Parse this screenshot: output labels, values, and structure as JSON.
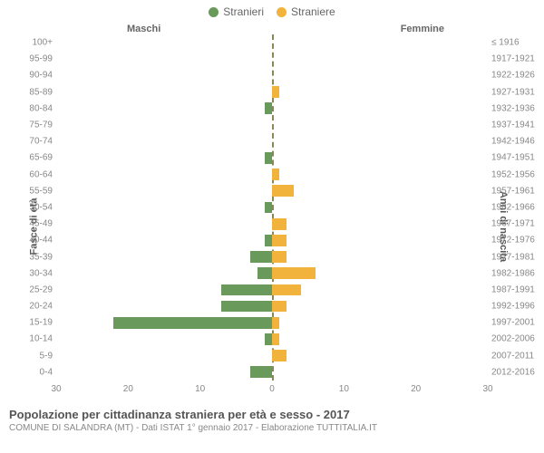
{
  "legend": {
    "male": {
      "label": "Stranieri",
      "color": "#6a9a5b"
    },
    "female": {
      "label": "Straniere",
      "color": "#f1b33c"
    }
  },
  "side_titles": {
    "male": "Maschi",
    "female": "Femmine"
  },
  "axis_titles": {
    "left": "Fasce di età",
    "right": "Anni di nascita"
  },
  "chart": {
    "type": "population-pyramid",
    "x_max": 30,
    "x_ticks": [
      30,
      20,
      10,
      0,
      10,
      20,
      30
    ],
    "background_color": "#ffffff",
    "centerline_color": "#888855",
    "tick_color": "#888888",
    "bar_height_pct": 70,
    "font_family": "Arial",
    "label_fontsize": 10,
    "legend_fontsize": 12,
    "title_fontsize": 13,
    "rows": [
      {
        "age": "100+",
        "years": "≤ 1916",
        "male": 0,
        "female": 0
      },
      {
        "age": "95-99",
        "years": "1917-1921",
        "male": 0,
        "female": 0
      },
      {
        "age": "90-94",
        "years": "1922-1926",
        "male": 0,
        "female": 0
      },
      {
        "age": "85-89",
        "years": "1927-1931",
        "male": 0,
        "female": 1
      },
      {
        "age": "80-84",
        "years": "1932-1936",
        "male": 1,
        "female": 0
      },
      {
        "age": "75-79",
        "years": "1937-1941",
        "male": 0,
        "female": 0
      },
      {
        "age": "70-74",
        "years": "1942-1946",
        "male": 0,
        "female": 0
      },
      {
        "age": "65-69",
        "years": "1947-1951",
        "male": 1,
        "female": 0
      },
      {
        "age": "60-64",
        "years": "1952-1956",
        "male": 0,
        "female": 1
      },
      {
        "age": "55-59",
        "years": "1957-1961",
        "male": 0,
        "female": 3
      },
      {
        "age": "50-54",
        "years": "1962-1966",
        "male": 1,
        "female": 0
      },
      {
        "age": "45-49",
        "years": "1967-1971",
        "male": 0,
        "female": 2
      },
      {
        "age": "40-44",
        "years": "1972-1976",
        "male": 1,
        "female": 2
      },
      {
        "age": "35-39",
        "years": "1977-1981",
        "male": 3,
        "female": 2
      },
      {
        "age": "30-34",
        "years": "1982-1986",
        "male": 2,
        "female": 6
      },
      {
        "age": "25-29",
        "years": "1987-1991",
        "male": 7,
        "female": 4
      },
      {
        "age": "20-24",
        "years": "1992-1996",
        "male": 7,
        "female": 2
      },
      {
        "age": "15-19",
        "years": "1997-2001",
        "male": 22,
        "female": 1
      },
      {
        "age": "10-14",
        "years": "2002-2006",
        "male": 1,
        "female": 1
      },
      {
        "age": "5-9",
        "years": "2007-2011",
        "male": 0,
        "female": 2
      },
      {
        "age": "0-4",
        "years": "2012-2016",
        "male": 3,
        "female": 0
      }
    ]
  },
  "footer": {
    "title": "Popolazione per cittadinanza straniera per età e sesso - 2017",
    "subtitle": "COMUNE DI SALANDRA (MT) - Dati ISTAT 1° gennaio 2017 - Elaborazione TUTTITALIA.IT"
  }
}
